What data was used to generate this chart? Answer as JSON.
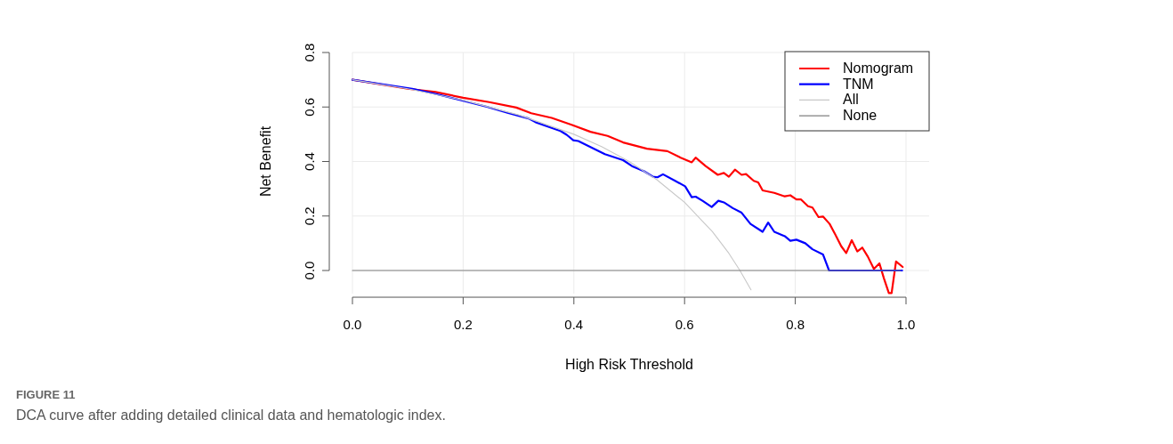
{
  "chart_data": {
    "type": "line",
    "xlabel": "High Risk Threshold",
    "ylabel": "Net Benefit",
    "xlim": [
      0,
      1
    ],
    "ylim": [
      -0.085,
      0.8
    ],
    "xticks": [
      {
        "value": 0,
        "label": "0.0"
      },
      0.2,
      0.4,
      0.6,
      0.8,
      {
        "value": 1,
        "label": "1.0"
      }
    ],
    "yticks": [
      {
        "value": 0,
        "label": "0.0"
      },
      0.2,
      0.4,
      0.6,
      0.8
    ],
    "grid": true,
    "legend": "top right",
    "line_style": "solid",
    "marker": "none",
    "series": [
      {
        "name": "Nomogram",
        "color": "#ff0000",
        "x": [
          0,
          0.1,
          0.15,
          0.2,
          0.247,
          0.296,
          0.323,
          0.36,
          0.397,
          0.43,
          0.461,
          0.489,
          0.532,
          0.569,
          0.593,
          0.613,
          0.62,
          0.638,
          0.66,
          0.671,
          0.68,
          0.691,
          0.703,
          0.711,
          0.725,
          0.733,
          0.741,
          0.762,
          0.781,
          0.791,
          0.802,
          0.81,
          0.823,
          0.831,
          0.842,
          0.85,
          0.862,
          0.872,
          0.883,
          0.892,
          0.902,
          0.912,
          0.921,
          0.931,
          0.942,
          0.952,
          0.96,
          0.969,
          0.974,
          0.982,
          0.994
        ],
        "values": [
          0.7,
          0.667,
          0.655,
          0.634,
          0.618,
          0.598,
          0.577,
          0.56,
          0.534,
          0.509,
          0.494,
          0.47,
          0.447,
          0.438,
          0.414,
          0.397,
          0.414,
          0.383,
          0.351,
          0.358,
          0.344,
          0.37,
          0.351,
          0.354,
          0.329,
          0.323,
          0.294,
          0.285,
          0.272,
          0.276,
          0.261,
          0.261,
          0.236,
          0.231,
          0.196,
          0.198,
          0.171,
          0.133,
          0.089,
          0.064,
          0.111,
          0.07,
          0.084,
          0.051,
          0.006,
          0.026,
          -0.028,
          -0.083,
          -0.083,
          0.033,
          0.013
        ]
      },
      {
        "name": "TNM",
        "color": "#0000ff",
        "x": [
          0,
          0.108,
          0.15,
          0.2,
          0.243,
          0.28,
          0.318,
          0.331,
          0.376,
          0.387,
          0.399,
          0.408,
          0.456,
          0.489,
          0.505,
          0.527,
          0.543,
          0.551,
          0.561,
          0.583,
          0.601,
          0.613,
          0.62,
          0.633,
          0.649,
          0.661,
          0.671,
          0.687,
          0.703,
          0.719,
          0.741,
          0.751,
          0.762,
          0.781,
          0.791,
          0.802,
          0.818,
          0.831,
          0.85,
          0.861,
          0.993
        ],
        "values": [
          0.7,
          0.667,
          0.648,
          0.623,
          0.601,
          0.579,
          0.558,
          0.544,
          0.512,
          0.498,
          0.478,
          0.475,
          0.427,
          0.405,
          0.383,
          0.364,
          0.344,
          0.342,
          0.353,
          0.329,
          0.309,
          0.269,
          0.271,
          0.255,
          0.233,
          0.256,
          0.25,
          0.229,
          0.212,
          0.171,
          0.142,
          0.176,
          0.142,
          0.126,
          0.109,
          0.113,
          0.1,
          0.078,
          0.059,
          0,
          0
        ]
      },
      {
        "name": "All",
        "color": "#c8c8c8",
        "x": [
          0,
          0.1,
          0.2,
          0.3,
          0.4,
          0.45,
          0.5,
          0.55,
          0.6,
          0.65,
          0.68,
          0.7,
          0.72
        ],
        "values": [
          0.7,
          0.667,
          0.625,
          0.571,
          0.5,
          0.455,
          0.4,
          0.333,
          0.25,
          0.143,
          0.063,
          0,
          -0.071
        ]
      },
      {
        "name": "None",
        "color": "#808080",
        "x": [
          0,
          0.99
        ],
        "values": [
          0,
          0
        ]
      }
    ],
    "annotations": [
      "FIGURE 11",
      "DCA curve after adding detailed clinical data and hematologic index."
    ]
  }
}
